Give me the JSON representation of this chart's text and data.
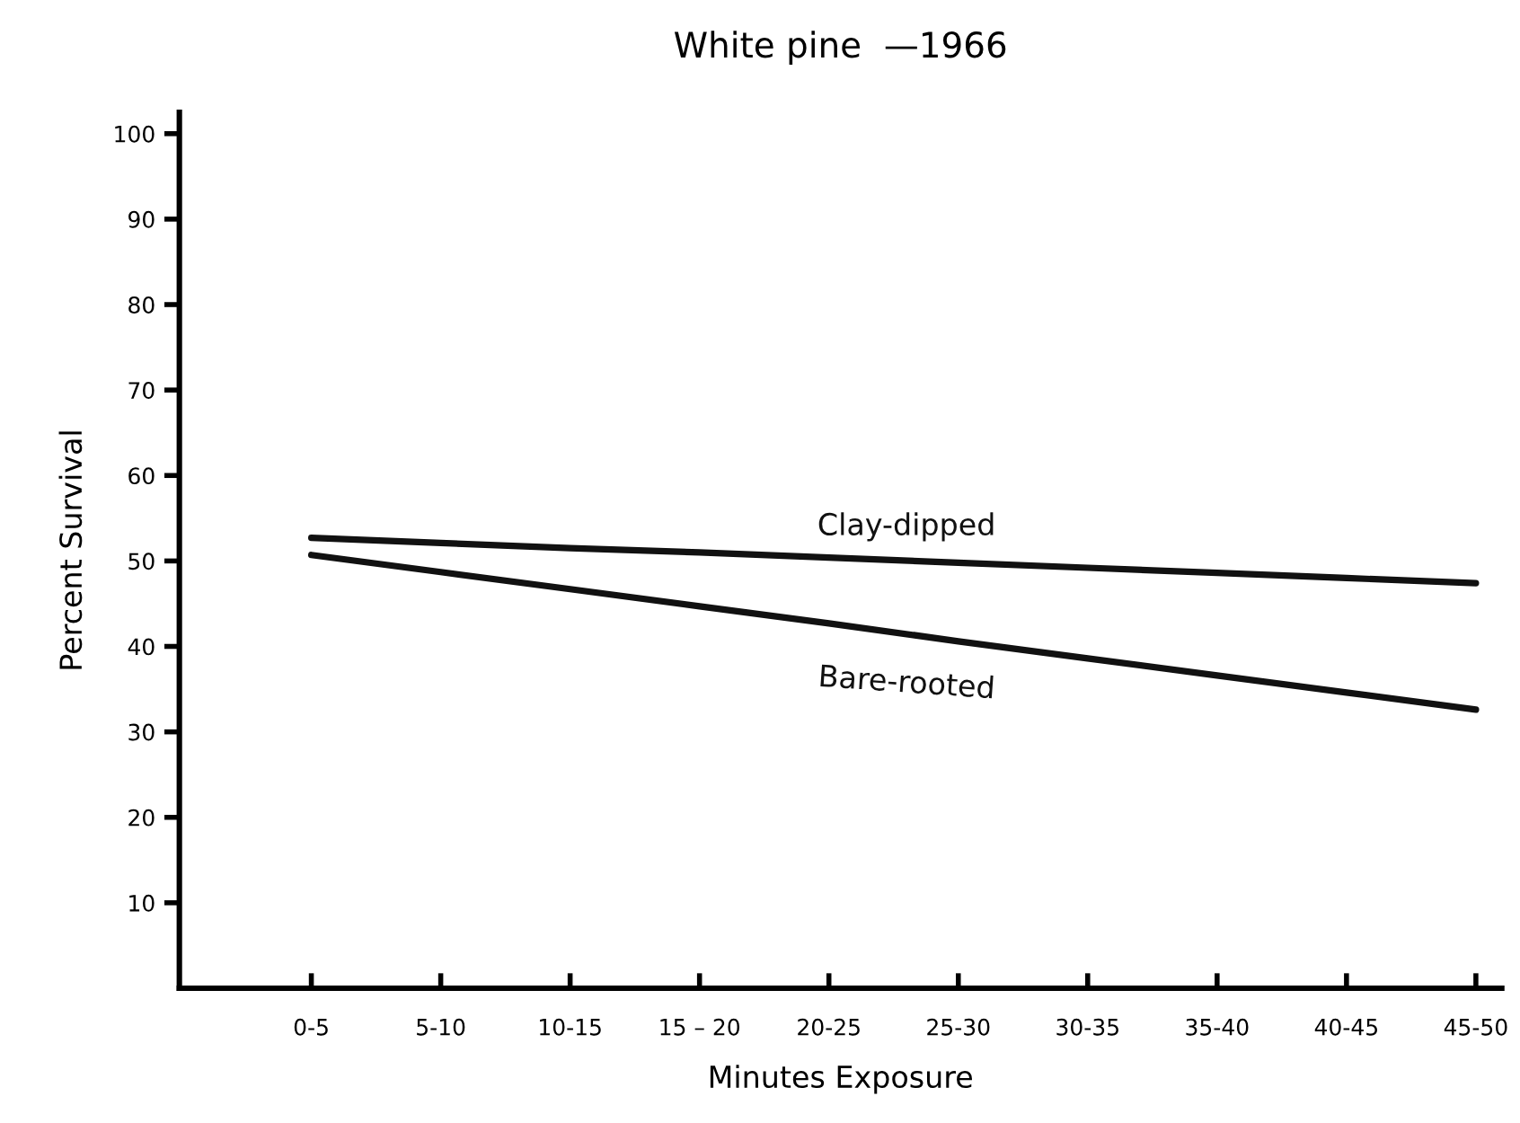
{
  "chart_data": {
    "type": "line",
    "title": "White pine  —1966",
    "xlabel": "Minutes Exposure",
    "ylabel": "Percent Survival",
    "categories": [
      "0-5",
      "5-10",
      "10-15",
      "15 – 20",
      "20-25",
      "25-30",
      "30-35",
      "35-40",
      "40-45",
      "45-50"
    ],
    "series": [
      {
        "name": "Clay-dipped",
        "color": "#111111",
        "values": [
          52.7,
          52.1,
          51.5,
          51.0,
          50.4,
          49.8,
          49.2,
          48.6,
          48.0,
          47.4
        ]
      },
      {
        "name": "Bare-rooted",
        "color": "#111111",
        "values": [
          50.7,
          48.7,
          46.7,
          44.7,
          42.7,
          40.6,
          38.6,
          36.6,
          34.6,
          32.6
        ]
      }
    ],
    "ylim": [
      0,
      102.5
    ],
    "yticks": [
      10,
      20,
      30,
      40,
      50,
      60,
      70,
      80,
      90,
      100
    ],
    "grid": false,
    "legend": false,
    "marker": "none",
    "line_style": "solid"
  }
}
